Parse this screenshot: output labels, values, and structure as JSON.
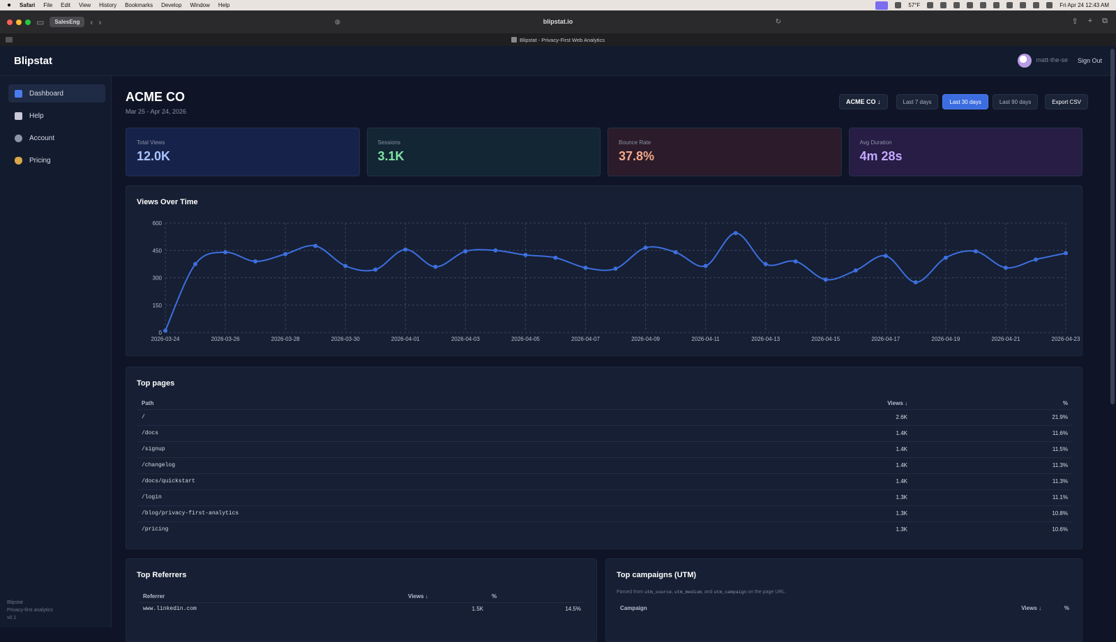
{
  "menubar": {
    "app": "Safari",
    "menus": [
      "File",
      "Edit",
      "View",
      "History",
      "Bookmarks",
      "Develop",
      "Window",
      "Help"
    ],
    "weather": "57°F",
    "clock": "Fri Apr 24  12:43 AM"
  },
  "browser": {
    "tab_group": "SalesEng",
    "url": "blipstat.io",
    "page_title": "Blipstat - Privacy-First Web Analytics"
  },
  "app": {
    "brand": "Blipstat",
    "username": "matt-the-se",
    "sign_out": "Sign Out"
  },
  "sidebar": {
    "items": [
      {
        "label": "Dashboard",
        "icon": "chart-icon",
        "color": "#4a7cf0"
      },
      {
        "label": "Help",
        "icon": "book-icon",
        "color": "#c9c9d9"
      },
      {
        "label": "Account",
        "icon": "user-icon",
        "color": "#8d95a8"
      },
      {
        "label": "Pricing",
        "icon": "money-bag-icon",
        "color": "#d9a84a"
      }
    ],
    "footer_name": "Blipstat",
    "footer_tagline": "Privacy-first analytics",
    "footer_version": "v0.1"
  },
  "header": {
    "org": "ACME CO",
    "date_range": "Mar 25 - Apr 24, 2026",
    "org_select": "ACME CO ↓",
    "ranges": [
      "Last 7 days",
      "Last 30 days",
      "Last 90 days"
    ],
    "active_range": "Last 30 days",
    "export": "Export CSV"
  },
  "stats": [
    {
      "label": "Total Views",
      "value": "12.0K"
    },
    {
      "label": "Sessions",
      "value": "3.1K"
    },
    {
      "label": "Bounce Rate",
      "value": "37.8%"
    },
    {
      "label": "Avg Duration",
      "value": "4m 28s"
    }
  ],
  "chart_data": {
    "type": "line",
    "title": "Views Over Time",
    "ylim": [
      0,
      600
    ],
    "yticks": [
      0,
      150,
      300,
      450,
      600
    ],
    "xtick_labels": [
      "2026-03-24",
      "2026-03-26",
      "2026-03-28",
      "2026-03-30",
      "2026-04-01",
      "2026-04-03",
      "2026-04-05",
      "2026-04-07",
      "2026-04-09",
      "2026-04-11",
      "2026-04-13",
      "2026-04-15",
      "2026-04-17",
      "2026-04-19",
      "2026-04-21",
      "2026-04-23"
    ],
    "x": [
      "2026-03-24",
      "2026-03-25",
      "2026-03-26",
      "2026-03-27",
      "2026-03-28",
      "2026-03-29",
      "2026-03-30",
      "2026-03-31",
      "2026-04-01",
      "2026-04-02",
      "2026-04-03",
      "2026-04-04",
      "2026-04-05",
      "2026-04-06",
      "2026-04-07",
      "2026-04-08",
      "2026-04-09",
      "2026-04-10",
      "2026-04-11",
      "2026-04-12",
      "2026-04-13",
      "2026-04-14",
      "2026-04-15",
      "2026-04-16",
      "2026-04-17",
      "2026-04-18",
      "2026-04-19",
      "2026-04-20",
      "2026-04-21",
      "2026-04-22",
      "2026-04-23"
    ],
    "series": [
      {
        "values": [
          10,
          375,
          440,
          390,
          430,
          475,
          365,
          345,
          455,
          360,
          445,
          450,
          425,
          410,
          355,
          350,
          465,
          440,
          365,
          545,
          375,
          390,
          290,
          340,
          420,
          275,
          410,
          445,
          355,
          400,
          435
        ]
      }
    ],
    "grid": true,
    "color": "#3d6fe0"
  },
  "top_pages": {
    "title": "Top pages",
    "headers": {
      "path": "Path",
      "views": "Views ↓",
      "pct": "%"
    },
    "rows": [
      {
        "path": "/",
        "views": "2.6K",
        "pct": "21.9%"
      },
      {
        "path": "/docs",
        "views": "1.4K",
        "pct": "11.6%"
      },
      {
        "path": "/signup",
        "views": "1.4K",
        "pct": "11.5%"
      },
      {
        "path": "/changelog",
        "views": "1.4K",
        "pct": "11.3%"
      },
      {
        "path": "/docs/quickstart",
        "views": "1.4K",
        "pct": "11.3%"
      },
      {
        "path": "/login",
        "views": "1.3K",
        "pct": "11.1%"
      },
      {
        "path": "/blog/privacy-first-analytics",
        "views": "1.3K",
        "pct": "10.8%"
      },
      {
        "path": "/pricing",
        "views": "1.3K",
        "pct": "10.6%"
      }
    ]
  },
  "top_referrers": {
    "title": "Top Referrers",
    "headers": {
      "ref": "Referrer",
      "views": "Views ↓",
      "pct": "%"
    },
    "rows": [
      {
        "ref": "www.linkedin.com",
        "views": "1.5K",
        "pct": "14.5%"
      }
    ]
  },
  "top_campaigns": {
    "title": "Top campaigns (UTM)",
    "sub_prefix": "Parsed from ",
    "sub_code1": "utm_source",
    "sub_sep": ", ",
    "sub_code2": "utm_medium",
    "sub_and": ", and ",
    "sub_code3": "utm_campaign",
    "sub_suffix": " on the page URL.",
    "headers": {
      "campaign": "Campaign",
      "views": "Views ↓",
      "pct": "%"
    }
  }
}
